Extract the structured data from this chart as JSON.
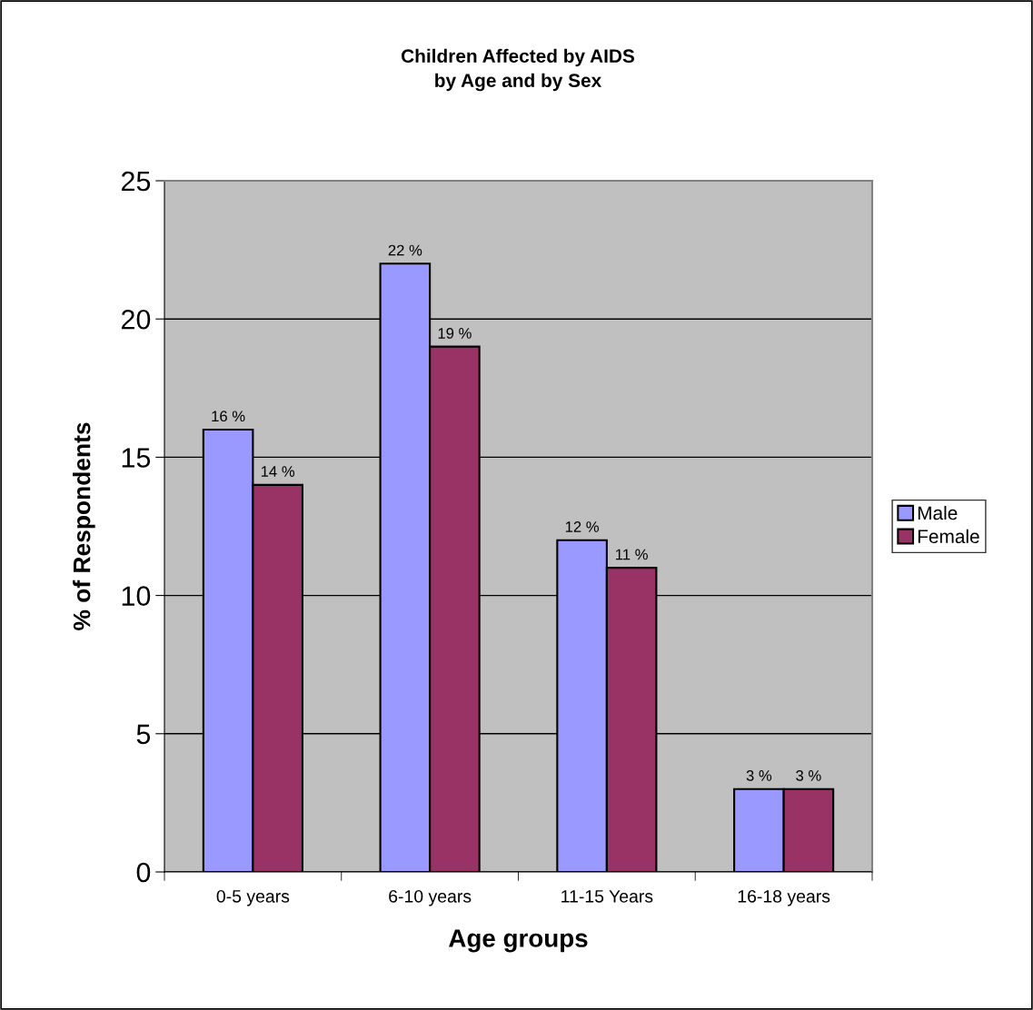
{
  "chart_data": {
    "type": "bar",
    "title": "Children Affected by AIDS\nby Age and by Sex",
    "xlabel": "Age groups",
    "ylabel": "% of Respondents",
    "categories": [
      "0-5 years",
      "6-10 years",
      "11-15 Years",
      "16-18 years"
    ],
    "series": [
      {
        "name": "Male",
        "color": "#9999ff",
        "values": [
          16,
          22,
          12,
          3
        ],
        "value_labels": [
          "16 %",
          "22 %",
          "12 %",
          "3 %"
        ]
      },
      {
        "name": "Female",
        "color": "#993366",
        "values": [
          14,
          19,
          11,
          3
        ],
        "value_labels": [
          "14 %",
          "19 %",
          "11 %",
          "3 %"
        ]
      }
    ],
    "ylim": [
      0,
      25
    ],
    "yticks": [
      0,
      5,
      10,
      15,
      20,
      25
    ],
    "grid": "y",
    "legend": "right"
  }
}
